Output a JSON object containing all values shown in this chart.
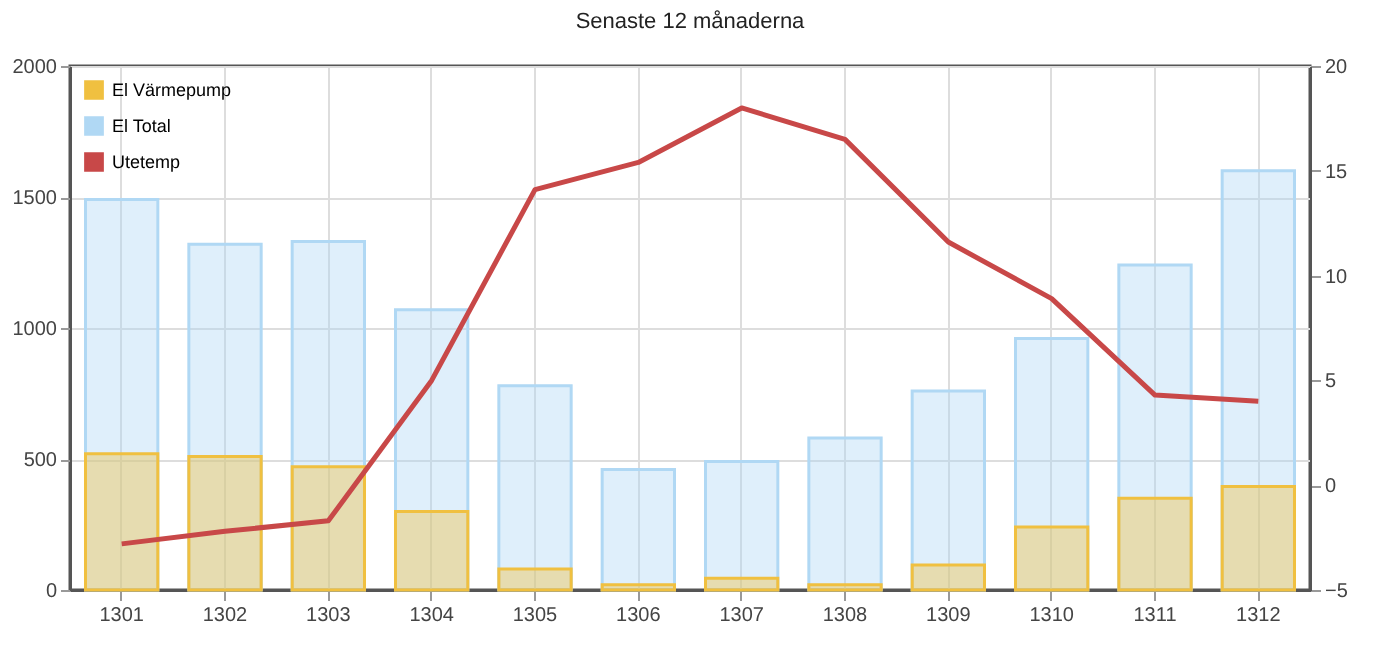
{
  "chart_data": {
    "type": "bar",
    "title": "Senaste 12 månaderna",
    "categories": [
      "1301",
      "1302",
      "1303",
      "1304",
      "1305",
      "1306",
      "1307",
      "1308",
      "1309",
      "1310",
      "1311",
      "1312"
    ],
    "series": [
      {
        "name": "El Värmepump",
        "color": "#f0c040",
        "values": [
          520,
          510,
          470,
          300,
          80,
          20,
          45,
          20,
          95,
          240,
          350,
          395
        ]
      },
      {
        "name": "El Total",
        "color": "#b0d8f4",
        "values": [
          1490,
          1320,
          1330,
          1070,
          780,
          460,
          490,
          580,
          760,
          960,
          1240,
          1600
        ]
      },
      {
        "name": "Utetemp",
        "color": "#c84848",
        "type": "line",
        "axis": "y2",
        "values": [
          -2.8,
          -2.2,
          -1.7,
          5.0,
          14.1,
          15.4,
          18.0,
          16.5,
          11.6,
          8.9,
          4.3,
          4.0
        ]
      }
    ],
    "ylim": [
      0,
      2000
    ],
    "yticks": [
      0,
      500,
      1000,
      1500,
      2000
    ],
    "y2lim": [
      -5,
      20
    ],
    "y2ticks": [
      -5,
      0,
      5,
      10,
      15,
      20
    ],
    "grid": true,
    "legend": "top left"
  }
}
